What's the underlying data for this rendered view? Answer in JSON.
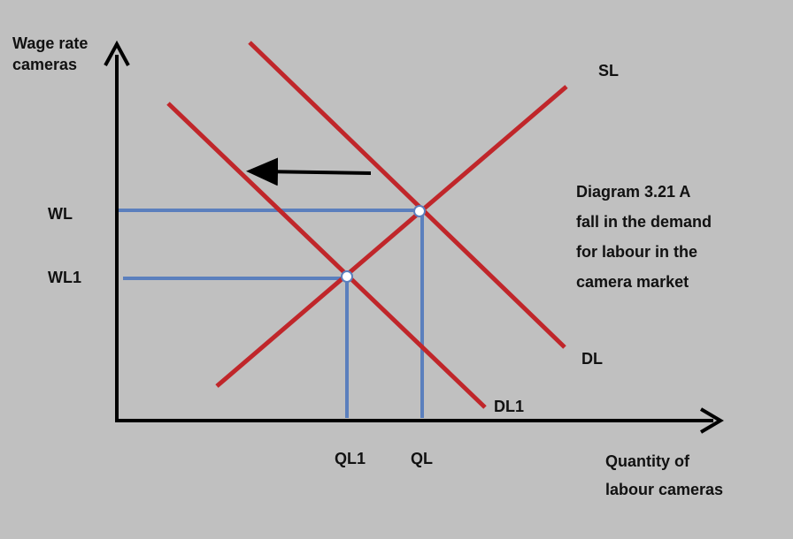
{
  "axes": {
    "y_label_line1": "Wage rate",
    "y_label_line2": "cameras",
    "x_label_line1": "Quantity of",
    "x_label_line2": "labour cameras"
  },
  "curves": {
    "supply": "SL",
    "demand": "DL",
    "demand_new": "DL1"
  },
  "ticks": {
    "wage_original": "WL",
    "wage_new": "WL1",
    "quantity_original": "QL",
    "quantity_new": "QL1"
  },
  "caption": {
    "line1": "Diagram 3.21 A",
    "line2": "fall in the demand",
    "line3": "for labour in the",
    "line4": "camera market"
  },
  "colors": {
    "background": "#c0c0c0",
    "axis": "#000000",
    "curve": "#c0262a",
    "guide": "#5b7fbd",
    "point_fill": "#ffffff"
  }
}
